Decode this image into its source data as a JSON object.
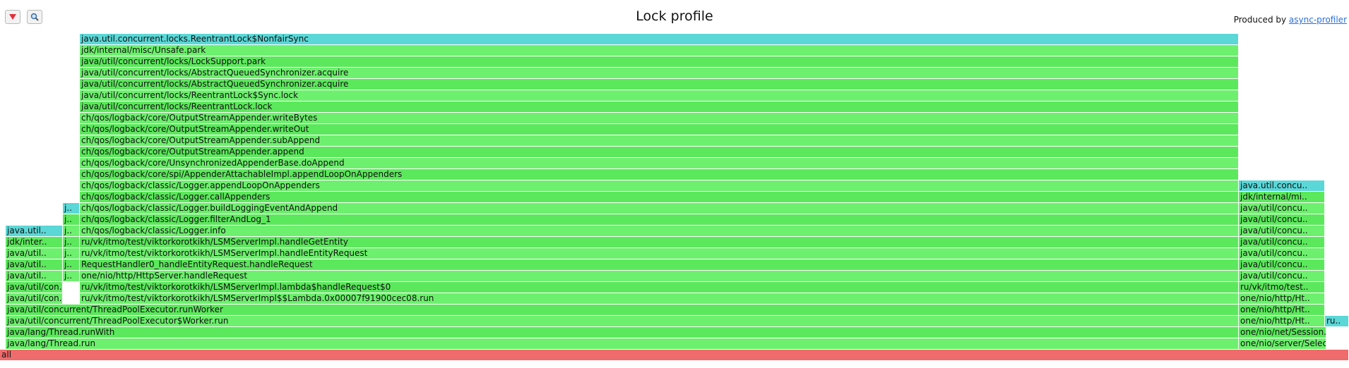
{
  "toolbar": {
    "reverse_label": "Reverse",
    "search_label": "Search"
  },
  "title": "Lock profile",
  "produced_by": {
    "prefix": "Produced by ",
    "link_text": "async-profiler"
  },
  "colors": {
    "root": "#f06b6b",
    "java": "#5ce85c",
    "java_alt": "#6df06d",
    "lock": "#5bd7d7"
  },
  "chart_data": {
    "type": "flamegraph",
    "title": "Lock profile",
    "total_units": 1910,
    "frames": [
      {
        "name": "all",
        "level": 0,
        "start": 0,
        "width": 1910,
        "kind": "root"
      },
      {
        "name": "java/lang/Thread.run",
        "level": 1,
        "start": 8,
        "width": 1746,
        "kind": "java"
      },
      {
        "name": "one/nio/server/SelectorThread.run",
        "label": "one/nio/server/Selec..",
        "level": 1,
        "start": 1754,
        "width": 124,
        "kind": "java"
      },
      {
        "name": "java/lang/Thread.runWith",
        "level": 2,
        "start": 8,
        "width": 1746,
        "kind": "java"
      },
      {
        "name": "one/nio/net/Session.process",
        "label": "one/nio/net/Session..",
        "level": 2,
        "start": 1754,
        "width": 124,
        "kind": "java"
      },
      {
        "name": "java/util/concurrent/ThreadPoolExecutor$Worker.run",
        "level": 3,
        "start": 8,
        "width": 1746,
        "kind": "java"
      },
      {
        "name": "one/nio/http/HttpSession.processRead",
        "label": "one/nio/http/Ht..",
        "level": 3,
        "start": 1754,
        "width": 122,
        "kind": "java"
      },
      {
        "name": "ru/vk/itmo/test/viktorkorotkikh/LSMServerImpl.handleRequest",
        "label": "ru..",
        "level": 3,
        "start": 1876,
        "width": 34,
        "kind": "lock"
      },
      {
        "name": "java/util/concurrent/ThreadPoolExecutor.runWorker",
        "level": 4,
        "start": 8,
        "width": 1746,
        "kind": "java"
      },
      {
        "name": "one/nio/http/HttpSession.processHttpBuffer",
        "label": "one/nio/http/Ht..",
        "level": 4,
        "start": 1754,
        "width": 122,
        "kind": "java"
      },
      {
        "name": "java/util/concurrent/ThreadPoolExecutor.getTask",
        "label": "java/util/con..",
        "level": 5,
        "start": 8,
        "width": 81,
        "kind": "java"
      },
      {
        "name": "ru/vk/itmo/test/viktorkorotkikh/LSMServerImpl$$Lambda.0x00007f91900cec08.run",
        "level": 5,
        "start": 113,
        "width": 1641,
        "kind": "java"
      },
      {
        "name": "one/nio/http/HttpSession.handleParsedRequest",
        "label": "one/nio/http/Ht..",
        "level": 5,
        "start": 1754,
        "width": 122,
        "kind": "java"
      },
      {
        "name": "java/util/concurrent/LinkedBlockingQueue.take",
        "label": "java/util/con..",
        "level": 6,
        "start": 8,
        "width": 81,
        "kind": "java"
      },
      {
        "name": "ru/vk/itmo/test/viktorkorotkikh/LSMServerImpl.lambda$handleRequest$0",
        "level": 6,
        "start": 113,
        "width": 1641,
        "kind": "java"
      },
      {
        "name": "ru/vk/itmo/test/viktorkorotkikh/LSMServerImpl.handleRequest",
        "label": "ru/vk/itmo/test..",
        "level": 6,
        "start": 1754,
        "width": 122,
        "kind": "java"
      },
      {
        "name": "java/util/concurrent/locks/AbstractQueuedSynchronizer$ConditionObject.await",
        "label": "java/util..",
        "level": 7,
        "start": 8,
        "width": 81,
        "kind": "java"
      },
      {
        "name": "java/util/concurrent/ThreadPoolExecutor.execute",
        "label": "j..",
        "level": 7,
        "start": 89,
        "width": 24,
        "kind": "java"
      },
      {
        "name": "one/nio/http/HttpServer.handleRequest",
        "level": 7,
        "start": 113,
        "width": 1641,
        "kind": "java"
      },
      {
        "name": "java/util/concurrent/ThreadPoolExecutor.execute",
        "label": "java/util/concu..",
        "level": 7,
        "start": 1754,
        "width": 122,
        "kind": "java"
      },
      {
        "name": "java/util/concurrent/ForkJoinPool.managedBlock",
        "label": "java/util..",
        "level": 8,
        "start": 8,
        "width": 81,
        "kind": "java"
      },
      {
        "name": "java/util/concurrent/LinkedBlockingQueue.offer",
        "label": "j..",
        "level": 8,
        "start": 89,
        "width": 24,
        "kind": "java"
      },
      {
        "name": "RequestHandler0_handleEntityRequest.handleRequest",
        "level": 8,
        "start": 113,
        "width": 1641,
        "kind": "java"
      },
      {
        "name": "java/util/concurrent/LinkedBlockingQueue.offer",
        "label": "java/util/concu..",
        "level": 8,
        "start": 1754,
        "width": 122,
        "kind": "java"
      },
      {
        "name": "java/util/concurrent/locks/AbstractQueuedSynchronizer$ConditionNode.block",
        "label": "java/util..",
        "level": 9,
        "start": 8,
        "width": 81,
        "kind": "java"
      },
      {
        "name": "java/util/concurrent/locks/ReentrantLock.lock",
        "label": "j..",
        "level": 9,
        "start": 89,
        "width": 24,
        "kind": "java"
      },
      {
        "name": "ru/vk/itmo/test/viktorkorotkikh/LSMServerImpl.handleEntityRequest",
        "level": 9,
        "start": 113,
        "width": 1641,
        "kind": "java"
      },
      {
        "name": "java/util/concurrent/locks/ReentrantLock.lock",
        "label": "java/util/concu..",
        "level": 9,
        "start": 1754,
        "width": 122,
        "kind": "java"
      },
      {
        "name": "jdk/internal/misc/Unsafe.park",
        "label": "jdk/inter..",
        "level": 10,
        "start": 8,
        "width": 81,
        "kind": "java"
      },
      {
        "name": "java/util/concurrent/locks/ReentrantLock$Sync.lock",
        "label": "j..",
        "level": 10,
        "start": 89,
        "width": 24,
        "kind": "java"
      },
      {
        "name": "ru/vk/itmo/test/viktorkorotkikh/LSMServerImpl.handleGetEntity",
        "level": 10,
        "start": 113,
        "width": 1641,
        "kind": "java"
      },
      {
        "name": "java/util/concurrent/locks/ReentrantLock$Sync.lock",
        "label": "java/util/concu..",
        "level": 10,
        "start": 1754,
        "width": 122,
        "kind": "java"
      },
      {
        "name": "java.util.concurrent.locks.AbstractQueuedSynchronizer$ConditionObject",
        "label": "java.util..",
        "level": 11,
        "start": 8,
        "width": 81,
        "kind": "lock"
      },
      {
        "name": "java/util/concurrent/locks/AbstractQueuedSynchronizer.acquire",
        "label": "j..",
        "level": 11,
        "start": 89,
        "width": 24,
        "kind": "java"
      },
      {
        "name": "ch/qos/logback/classic/Logger.info",
        "level": 11,
        "start": 113,
        "width": 1641,
        "kind": "java"
      },
      {
        "name": "java/util/concurrent/locks/AbstractQueuedSynchronizer.acquire",
        "label": "java/util/concu..",
        "level": 11,
        "start": 1754,
        "width": 122,
        "kind": "java"
      },
      {
        "name": "java/util/concurrent/locks/AbstractQueuedSynchronizer.acquire",
        "label": "j..",
        "level": 12,
        "start": 89,
        "width": 24,
        "kind": "java"
      },
      {
        "name": "ch/qos/logback/classic/Logger.filterAndLog_1",
        "level": 12,
        "start": 113,
        "width": 1641,
        "kind": "java"
      },
      {
        "name": "java/util/concurrent/locks/AbstractQueuedSynchronizer.acquire",
        "label": "java/util/concu..",
        "level": 12,
        "start": 1754,
        "width": 122,
        "kind": "java"
      },
      {
        "name": "java.util.concurrent.locks.ReentrantLock$NonfairSync",
        "label": "j..",
        "level": 13,
        "start": 89,
        "width": 24,
        "kind": "lock"
      },
      {
        "name": "ch/qos/logback/classic/Logger.buildLoggingEventAndAppend",
        "level": 13,
        "start": 113,
        "width": 1641,
        "kind": "java"
      },
      {
        "name": "java/util/concurrent/locks/LockSupport.park",
        "label": "java/util/concu..",
        "level": 13,
        "start": 1754,
        "width": 122,
        "kind": "java"
      },
      {
        "name": "ch/qos/logback/classic/Logger.callAppenders",
        "level": 14,
        "start": 113,
        "width": 1641,
        "kind": "java"
      },
      {
        "name": "jdk/internal/misc/Unsafe.park",
        "label": "jdk/internal/mi..",
        "level": 14,
        "start": 1754,
        "width": 122,
        "kind": "java"
      },
      {
        "name": "ch/qos/logback/classic/Logger.appendLoopOnAppenders",
        "level": 15,
        "start": 113,
        "width": 1641,
        "kind": "java"
      },
      {
        "name": "java.util.concurrent.locks.ReentrantLock$NonfairSync",
        "label": "java.util.concu..",
        "level": 15,
        "start": 1754,
        "width": 122,
        "kind": "lock"
      },
      {
        "name": "ch/qos/logback/core/spi/AppenderAttachableImpl.appendLoopOnAppenders",
        "level": 16,
        "start": 113,
        "width": 1641,
        "kind": "java"
      },
      {
        "name": "ch/qos/logback/core/UnsynchronizedAppenderBase.doAppend",
        "level": 17,
        "start": 113,
        "width": 1641,
        "kind": "java"
      },
      {
        "name": "ch/qos/logback/core/OutputStreamAppender.append",
        "level": 18,
        "start": 113,
        "width": 1641,
        "kind": "java"
      },
      {
        "name": "ch/qos/logback/core/OutputStreamAppender.subAppend",
        "level": 19,
        "start": 113,
        "width": 1641,
        "kind": "java"
      },
      {
        "name": "ch/qos/logback/core/OutputStreamAppender.writeOut",
        "level": 20,
        "start": 113,
        "width": 1641,
        "kind": "java"
      },
      {
        "name": "ch/qos/logback/core/OutputStreamAppender.writeBytes",
        "level": 21,
        "start": 113,
        "width": 1641,
        "kind": "java"
      },
      {
        "name": "java/util/concurrent/locks/ReentrantLock.lock",
        "level": 22,
        "start": 113,
        "width": 1641,
        "kind": "java"
      },
      {
        "name": "java/util/concurrent/locks/ReentrantLock$Sync.lock",
        "level": 23,
        "start": 113,
        "width": 1641,
        "kind": "java"
      },
      {
        "name": "java/util/concurrent/locks/AbstractQueuedSynchronizer.acquire",
        "level": 24,
        "start": 113,
        "width": 1641,
        "kind": "java"
      },
      {
        "name": "java/util/concurrent/locks/AbstractQueuedSynchronizer.acquire",
        "level": 25,
        "start": 113,
        "width": 1641,
        "kind": "java"
      },
      {
        "name": "java/util/concurrent/locks/LockSupport.park",
        "level": 26,
        "start": 113,
        "width": 1641,
        "kind": "java"
      },
      {
        "name": "jdk/internal/misc/Unsafe.park",
        "level": 27,
        "start": 113,
        "width": 1641,
        "kind": "java"
      },
      {
        "name": "java.util.concurrent.locks.ReentrantLock$NonfairSync",
        "level": 28,
        "start": 113,
        "width": 1641,
        "kind": "lock"
      }
    ]
  }
}
